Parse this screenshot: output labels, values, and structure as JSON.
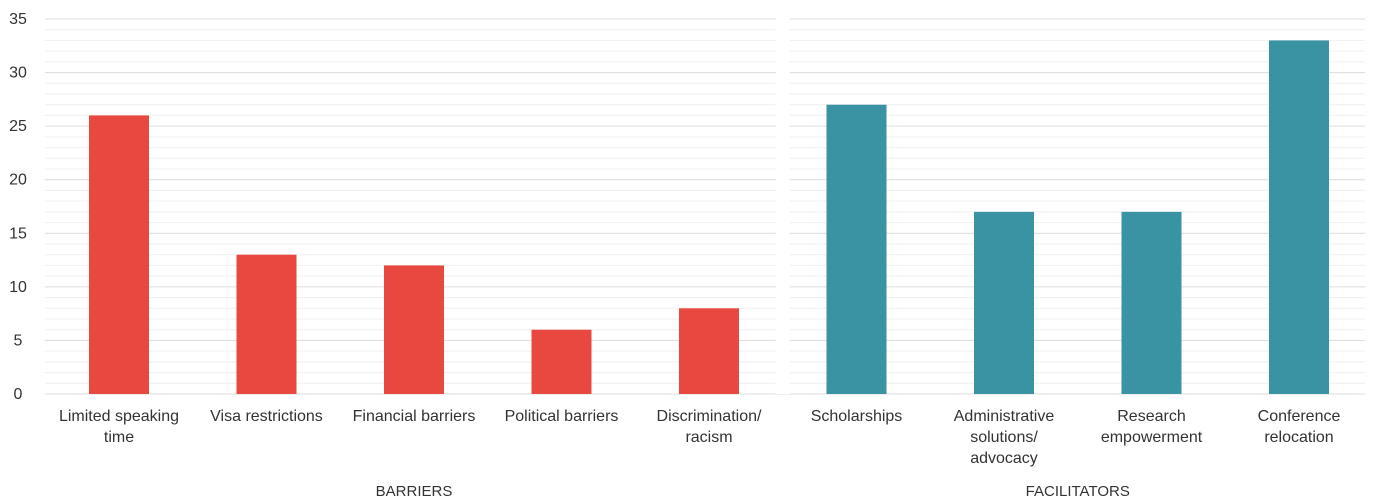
{
  "chart_data": {
    "type": "bar",
    "ylim": [
      0,
      35
    ],
    "yticks": [
      "0",
      "5",
      "10",
      "15",
      "20",
      "25",
      "30",
      "35"
    ],
    "grid": true,
    "colors": {
      "barriers": "#E8483F",
      "facilitators": "#3A93A3"
    },
    "categories": [
      "Limited speaking time",
      "Visa restrictions",
      "Financial barriers",
      "Political barriers",
      "Discrimination/ racism",
      "Scholarships",
      "Administrative solutions/ advocacy",
      "Research empowerment",
      "Conference relocation"
    ],
    "groups": [
      {
        "name": "BARRIERS",
        "color": "#E8483F",
        "categories": [
          "Limited speaking time",
          "Visa restrictions",
          "Financial barriers",
          "Political barriers",
          "Discrimination/ racism"
        ],
        "values": [
          26,
          13,
          12,
          6,
          8
        ]
      },
      {
        "name": "FACILITATORS",
        "color": "#3A93A3",
        "categories": [
          "Scholarships",
          "Administrative solutions/ advocacy",
          "Research empowerment",
          "Conference relocation"
        ],
        "values": [
          27,
          17,
          17,
          33
        ]
      }
    ]
  }
}
